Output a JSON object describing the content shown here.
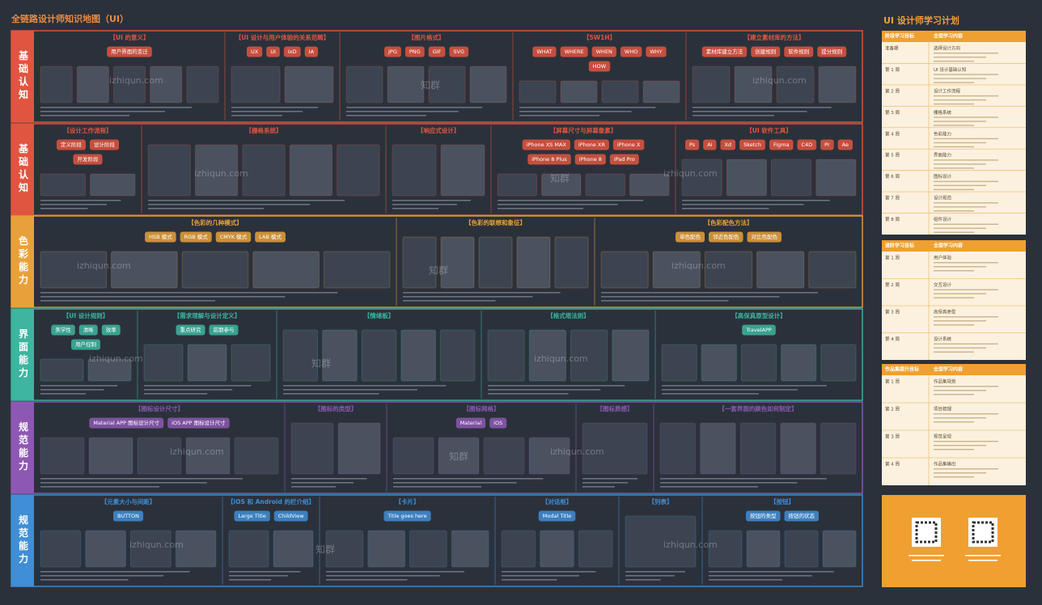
{
  "header": {
    "title": "全链路设计师知识地图（UI）"
  },
  "watermark": {
    "site": "izhiqun.com",
    "brand": "知群"
  },
  "sections": [
    {
      "label": "基础认知",
      "color": "#e0553f",
      "panels": [
        {
          "title": "【UI 的意义】",
          "items": [
            "用户界面的变迁"
          ]
        },
        {
          "title": "【UI 设计与用户体验的关系范畴】",
          "items": [
            "UX",
            "UI",
            "IxD",
            "IA"
          ]
        },
        {
          "title": "【图片格式】",
          "items": [
            "JPG",
            "PNG",
            "GIF",
            "SVG"
          ]
        },
        {
          "title": "【5W1H】",
          "items": [
            "WHAT",
            "WHERE",
            "WHEN",
            "WHO",
            "WHY",
            "HOW"
          ]
        },
        {
          "title": "【建立素材库的方法】",
          "items": [
            "素材库建立方法",
            "创建规则",
            "软件规则",
            "提分规则"
          ]
        }
      ]
    },
    {
      "label": "基础认知",
      "color": "#e0553f",
      "panels": [
        {
          "title": "【设计工作流程】",
          "items": [
            "定义阶段",
            "设计阶段",
            "开发阶段"
          ]
        },
        {
          "title": "【栅格系统】",
          "items": []
        },
        {
          "title": "【响应式设计】",
          "items": []
        },
        {
          "title": "【屏幕尺寸与屏幕像素】",
          "items": [
            "iPhone XS MAX",
            "iPhone XR",
            "iPhone X",
            "iPhone 8 Plus",
            "iPhone 8",
            "iPad Pro"
          ]
        },
        {
          "title": "【UI 软件工具】",
          "items": [
            "Ps",
            "Ai",
            "Xd",
            "Sketch",
            "Figma",
            "C4D",
            "Pr",
            "Ae"
          ]
        }
      ]
    },
    {
      "label": "色彩能力",
      "color": "#e8a13a",
      "panels": [
        {
          "title": "【色彩的几种模式】",
          "items": [
            "HSB 模式",
            "RGB 模式",
            "CMYK 模式",
            "LAB 模式"
          ]
        },
        {
          "title": "【色彩的联想和象征】",
          "items": []
        },
        {
          "title": "【色彩配色方法】",
          "items": [
            "单色配色",
            "邻近色配色",
            "对比色配色"
          ]
        }
      ]
    },
    {
      "label": "界面能力",
      "color": "#3db5a0",
      "panels": [
        {
          "title": "【UI 设计规则】",
          "items": [
            "美学性",
            "清晰",
            "效率",
            "用户控制"
          ]
        },
        {
          "title": "【需求理解与设计定义】",
          "items": [
            "重点研究",
            "前期参与"
          ]
        },
        {
          "title": "【情绪板】",
          "items": []
        },
        {
          "title": "【格式塔法则】",
          "items": []
        },
        {
          "title": "【高保真原型设计】",
          "items": [
            "TravelAPP"
          ]
        }
      ]
    },
    {
      "label": "规范能力",
      "color": "#8d58b3",
      "panels": [
        {
          "title": "【图标设计尺寸】",
          "items": [
            "Material APP 图标设计尺寸",
            "iOS APP 图标设计尺寸"
          ]
        },
        {
          "title": "【图标的类型】",
          "items": []
        },
        {
          "title": "【图标网格】",
          "items": [
            "Material",
            "iOS"
          ]
        },
        {
          "title": "【图标质感】",
          "items": []
        },
        {
          "title": "【一套界面的颜色如何制定】",
          "items": []
        }
      ]
    },
    {
      "label": "规范能力",
      "color": "#3f8ed6",
      "panels": [
        {
          "title": "【元素大小与间距】",
          "items": [
            "BUTTON"
          ]
        },
        {
          "title": "【iOS 和 Android 的栏介绍】",
          "items": [
            "Large Title",
            "ChildView"
          ]
        },
        {
          "title": "【卡片】",
          "items": [
            "Title goes here"
          ]
        },
        {
          "title": "【对话框】",
          "items": [
            "Modal Title"
          ]
        },
        {
          "title": "【列表】",
          "items": []
        },
        {
          "title": "【按钮】",
          "items": [
            "按钮的类型",
            "按钮的状态"
          ]
        }
      ]
    }
  ],
  "plan": {
    "title": "UI 设计师学习计划",
    "tables": [
      {
        "header": [
          "阶段学习目标",
          "全面学习内容"
        ],
        "rows": [
          [
            "准备期",
            "选择设计方向"
          ],
          [
            "第 1 周",
            "UI 设计基础认知"
          ],
          [
            "第 2 周",
            "设计工作流程"
          ],
          [
            "第 3 周",
            "栅格系统"
          ],
          [
            "第 4 周",
            "色彩能力"
          ],
          [
            "第 5 周",
            "界面能力"
          ],
          [
            "第 6 周",
            "图标设计"
          ],
          [
            "第 7 周",
            "设计规范"
          ],
          [
            "第 8 周",
            "组件设计"
          ]
        ]
      },
      {
        "header": [
          "进阶学习目标",
          "全面学习内容"
        ],
        "rows": [
          [
            "第 1 周",
            "用户体验"
          ],
          [
            "第 2 周",
            "交互设计"
          ],
          [
            "第 3 周",
            "高保真原型"
          ],
          [
            "第 4 周",
            "设计系统"
          ]
        ]
      },
      {
        "header": [
          "作品集提升目标",
          "全面学习内容"
        ],
        "rows": [
          [
            "第 1 周",
            "作品集规划"
          ],
          [
            "第 2 周",
            "项目梳理"
          ],
          [
            "第 3 周",
            "视觉呈现"
          ],
          [
            "第 4 周",
            "作品集输出"
          ]
        ]
      }
    ]
  }
}
